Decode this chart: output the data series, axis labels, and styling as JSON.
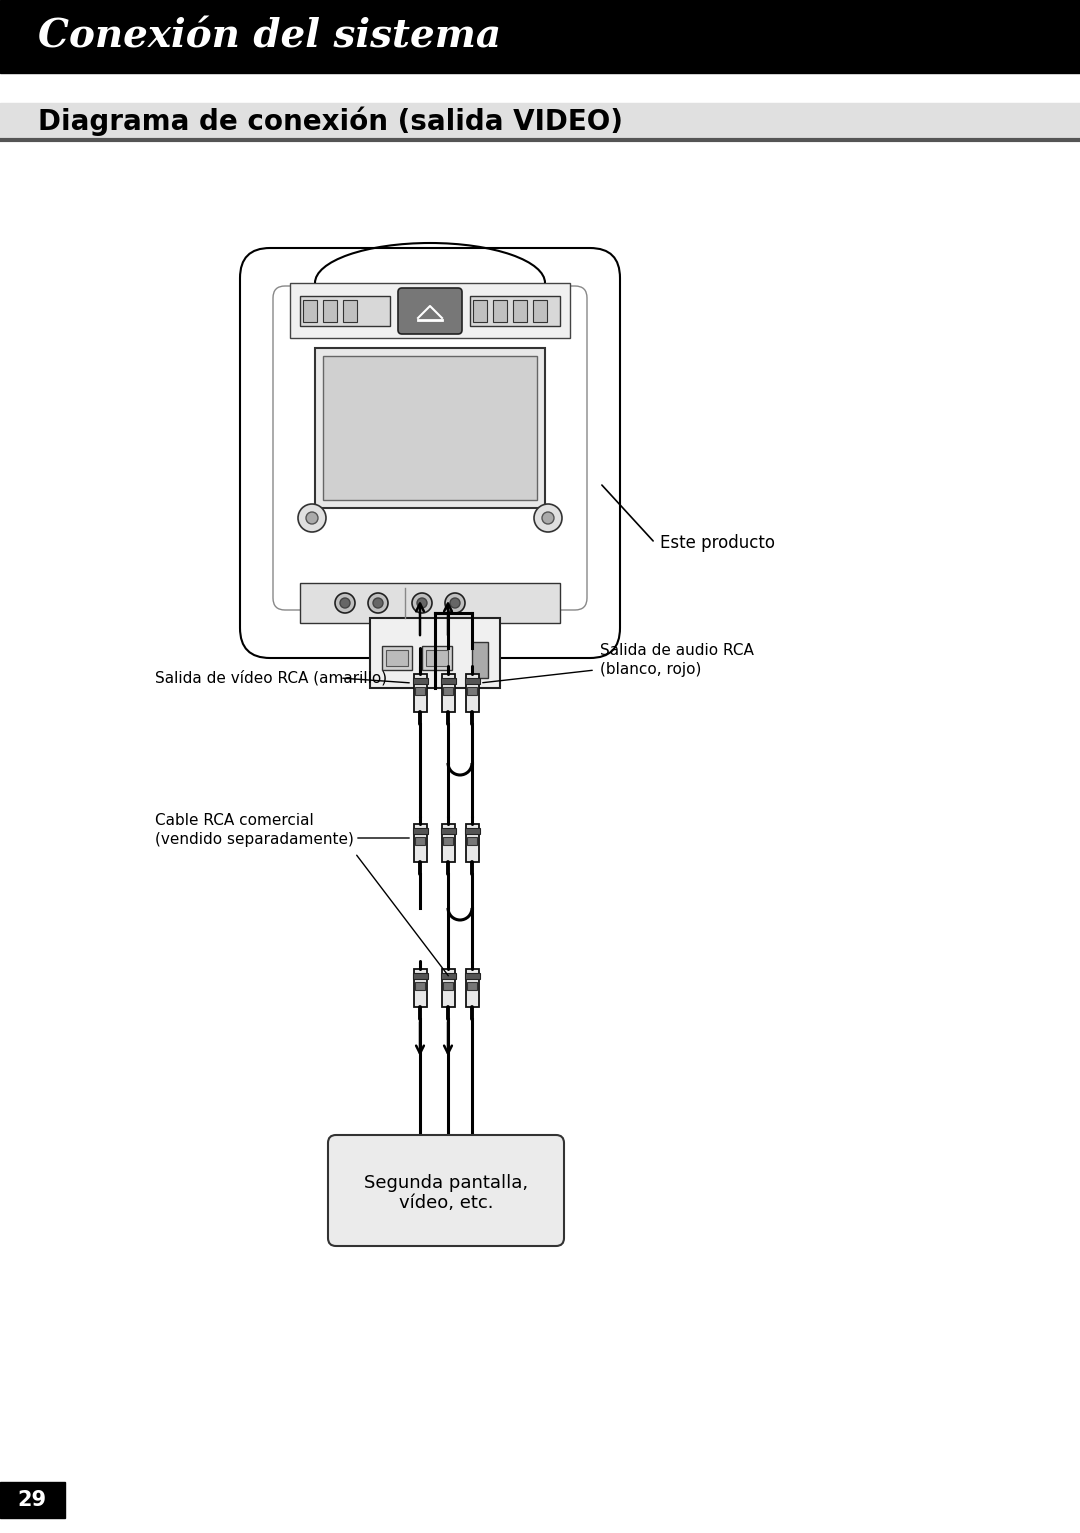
{
  "title_banner": "Conexión del sistema",
  "subtitle": "Diagrama de conexión (salida VIDEO)",
  "label_product": "Este producto",
  "label_video_out": "Salida de vídeo RCA (amarillo)",
  "label_audio_out": "Salida de audio RCA\n(blanco, rojo)",
  "label_cable": "Cable RCA comercial\n(vendido separadamente)",
  "label_screen": "Segunda pantalla,\nvídeo, etc.",
  "page_number": "29",
  "bg_color": "#ffffff",
  "banner_color": "#000000",
  "banner_text_color": "#ffffff",
  "text_color": "#000000",
  "line_color": "#000000",
  "subtitle_bg": "#e0e0e0",
  "box_fill": "#ebebeb",
  "device_fill": "#ffffff",
  "device_edge": "#000000"
}
